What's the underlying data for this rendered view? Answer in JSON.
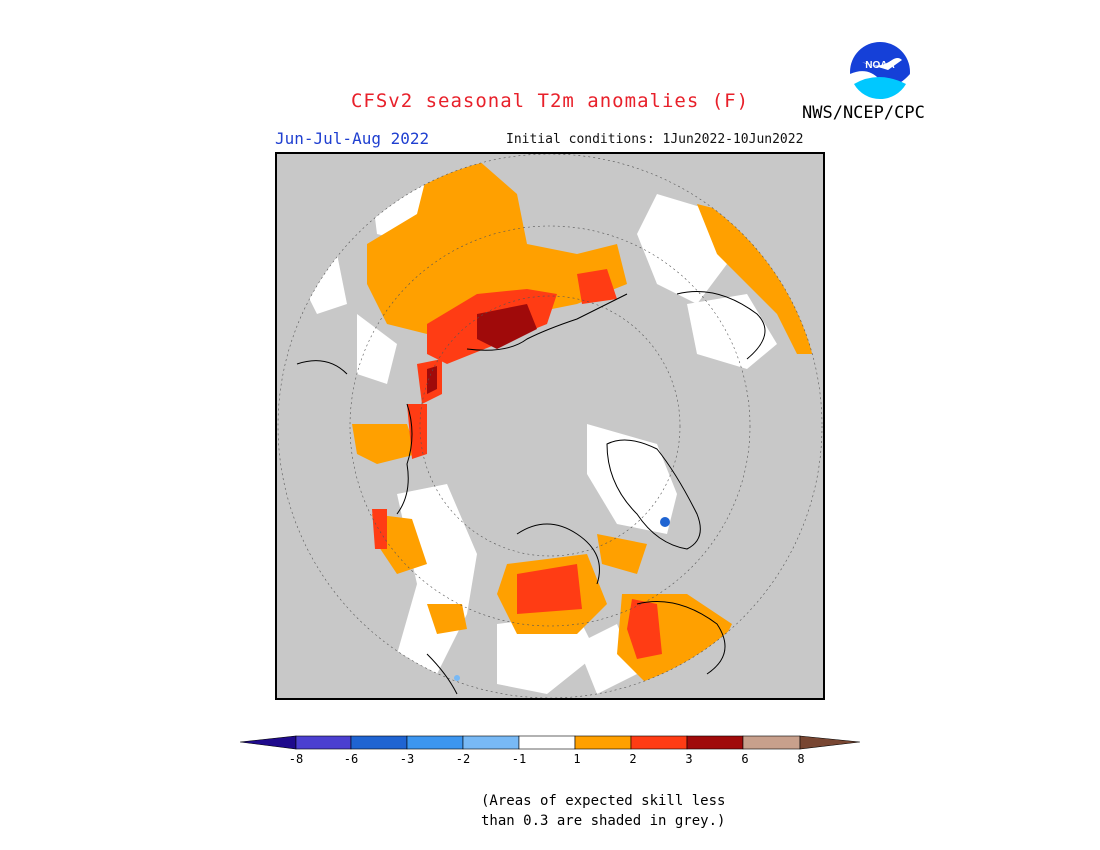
{
  "header": {
    "title": "CFSv2 seasonal T2m anomalies (F)",
    "period": "Jun-Jul-Aug 2022",
    "initial_conditions": "Initial conditions: 1Jun2022-10Jun2022",
    "agency": "NWS/NCEP/CPC",
    "logo_text": "NOAA"
  },
  "legend": {
    "levels": [
      "-8",
      "-6",
      "-3",
      "-2",
      "-1",
      "1",
      "2",
      "3",
      "6",
      "8"
    ],
    "bins": [
      {
        "color": "#1f0a8c",
        "range": "< -8"
      },
      {
        "color": "#4b3fd0",
        "range": "-8 to -6"
      },
      {
        "color": "#1f64d2",
        "range": "-6 to -3"
      },
      {
        "color": "#3c96f0",
        "range": "-3 to -2"
      },
      {
        "color": "#78b9f5",
        "range": "-2 to -1"
      },
      {
        "color": "#ffffff",
        "range": "-1 to 1"
      },
      {
        "color": "#ffa000",
        "range": "1 to 2"
      },
      {
        "color": "#ff3c14",
        "range": "2 to 3"
      },
      {
        "color": "#a00a0a",
        "range": "3 to 6"
      },
      {
        "color": "#c8a08c",
        "range": "6 to 8"
      },
      {
        "color": "#784632",
        "range": "> 8"
      }
    ],
    "note_line1": "(Areas of expected skill less",
    "note_line2": "than 0.3 are shaded in grey.)"
  },
  "map": {
    "projection": "north-polar-stereographic",
    "background_color": "#c8c8c8",
    "circle_color": "#c8c8c8"
  }
}
